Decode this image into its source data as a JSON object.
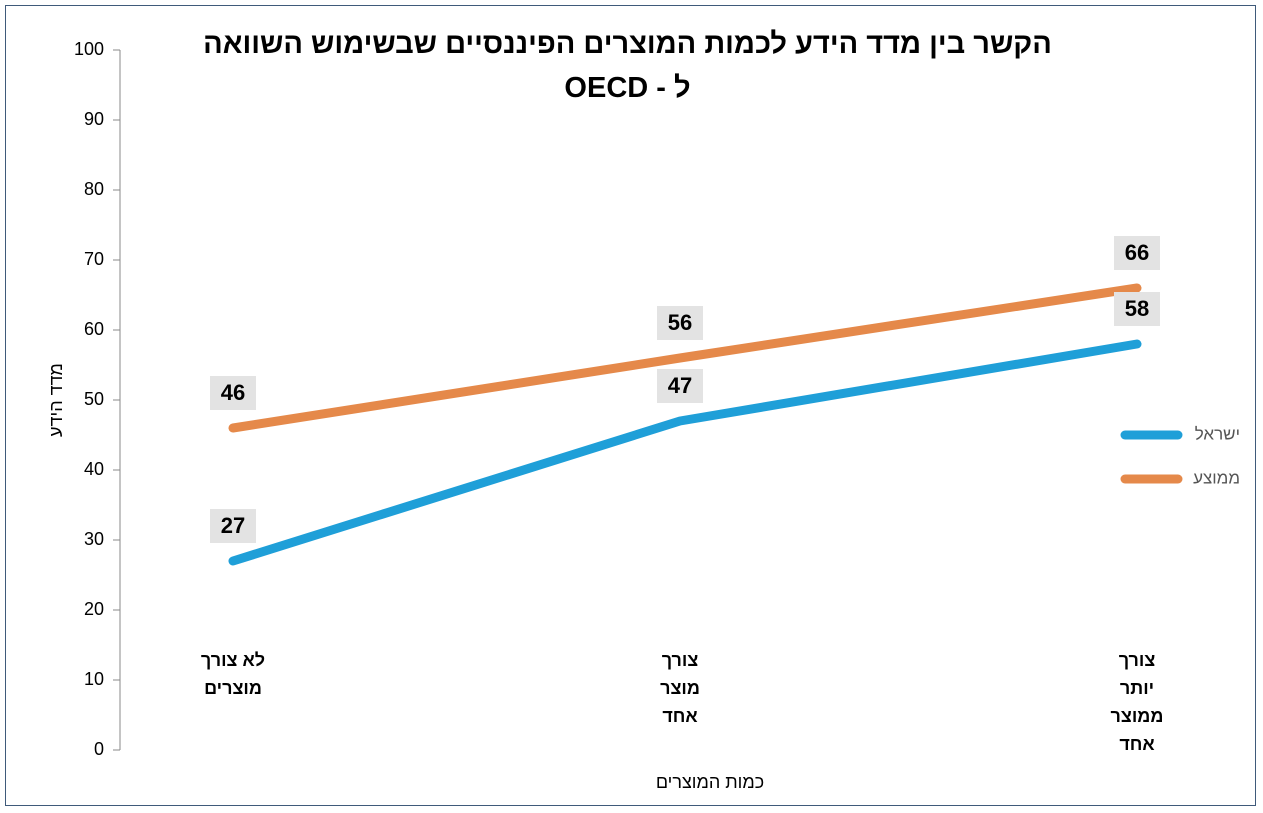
{
  "chart_data": {
    "type": "line",
    "title": "הקשר בין מדד הידע לכמות המוצרים הפיננסיים שבשימוש השוואה ל - OECD",
    "x_label": "כמות המוצרים",
    "y_label": "מדד הידע",
    "categories": [
      "לא צורך מוצרים",
      "צורך מוצר אחד",
      "צורך יותר ממוצר אחד"
    ],
    "series": [
      {
        "name": "ישראל",
        "color": "#1f9fd8",
        "values": [
          27,
          47,
          58
        ]
      },
      {
        "name": "ממוצע",
        "color": "#e5894a",
        "values": [
          46,
          56,
          66
        ]
      }
    ],
    "ylim": [
      0,
      100
    ],
    "yticks": [
      0,
      10,
      20,
      30,
      40,
      50,
      60,
      70,
      80,
      90,
      100
    ],
    "legend": "right",
    "grid": false
  }
}
